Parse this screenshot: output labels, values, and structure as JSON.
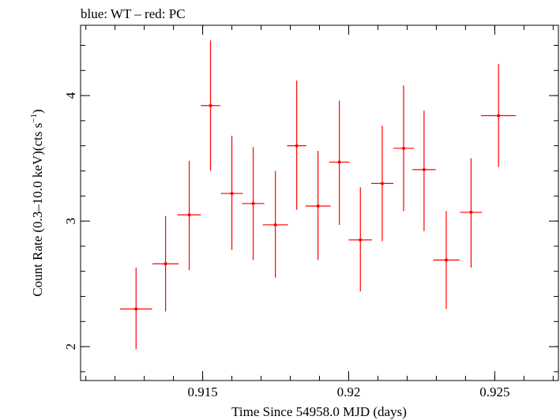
{
  "chart_data": {
    "type": "scatter",
    "title": "blue: WT – red: PC",
    "xlabel": "Time Since 54958.0 MJD (days)",
    "ylabel_main": "Count Rate (0.3–10.0 keV)(cts s",
    "ylabel_sup": "−1",
    "ylabel_close": ")",
    "xlim": [
      0.91082,
      0.92718
    ],
    "ylim": [
      1.73,
      4.56
    ],
    "x_ticks": [
      {
        "value": 0.915,
        "label": "0.915"
      },
      {
        "value": 0.92,
        "label": "0.92"
      },
      {
        "value": 0.925,
        "label": "0.925"
      }
    ],
    "x_minor_step": 0.001,
    "y_ticks": [
      {
        "value": 2,
        "label": "2"
      },
      {
        "value": 3,
        "label": "3"
      },
      {
        "value": 4,
        "label": "4"
      }
    ],
    "y_minor_step": 0.2,
    "grid": false,
    "series": [
      {
        "name": "PC",
        "color": "#ff0000",
        "points": [
          {
            "x": 0.91272,
            "y": 2.3,
            "xerr": 0.00055,
            "ylo": 1.98,
            "yhi": 2.63
          },
          {
            "x": 0.91373,
            "y": 2.66,
            "xerr": 0.00045,
            "ylo": 2.28,
            "yhi": 3.04
          },
          {
            "x": 0.91454,
            "y": 3.05,
            "xerr": 0.0004,
            "ylo": 2.61,
            "yhi": 3.48
          },
          {
            "x": 0.91527,
            "y": 3.92,
            "xerr": 0.00033,
            "ylo": 3.4,
            "yhi": 4.44
          },
          {
            "x": 0.916,
            "y": 3.22,
            "xerr": 0.00038,
            "ylo": 2.77,
            "yhi": 3.68
          },
          {
            "x": 0.91673,
            "y": 3.14,
            "xerr": 0.00038,
            "ylo": 2.69,
            "yhi": 3.59
          },
          {
            "x": 0.91749,
            "y": 2.97,
            "xerr": 0.00043,
            "ylo": 2.55,
            "yhi": 3.4
          },
          {
            "x": 0.91822,
            "y": 3.6,
            "xerr": 0.00033,
            "ylo": 3.09,
            "yhi": 4.12
          },
          {
            "x": 0.91895,
            "y": 3.12,
            "xerr": 0.00043,
            "ylo": 2.69,
            "yhi": 3.56
          },
          {
            "x": 0.91968,
            "y": 3.47,
            "xerr": 0.00035,
            "ylo": 2.97,
            "yhi": 3.96
          },
          {
            "x": 0.9204,
            "y": 2.85,
            "xerr": 0.0004,
            "ylo": 2.44,
            "yhi": 3.27
          },
          {
            "x": 0.92115,
            "y": 3.3,
            "xerr": 0.00038,
            "ylo": 2.84,
            "yhi": 3.76
          },
          {
            "x": 0.92188,
            "y": 3.58,
            "xerr": 0.00035,
            "ylo": 3.08,
            "yhi": 4.08
          },
          {
            "x": 0.92258,
            "y": 3.41,
            "xerr": 0.0004,
            "ylo": 2.92,
            "yhi": 3.88
          },
          {
            "x": 0.92334,
            "y": 2.69,
            "xerr": 0.00045,
            "ylo": 2.3,
            "yhi": 3.08
          },
          {
            "x": 0.92419,
            "y": 3.07,
            "xerr": 0.00038,
            "ylo": 2.63,
            "yhi": 3.5
          },
          {
            "x": 0.92513,
            "y": 3.84,
            "xerr": 0.0006,
            "ylo": 3.43,
            "yhi": 4.25
          }
        ]
      }
    ]
  }
}
